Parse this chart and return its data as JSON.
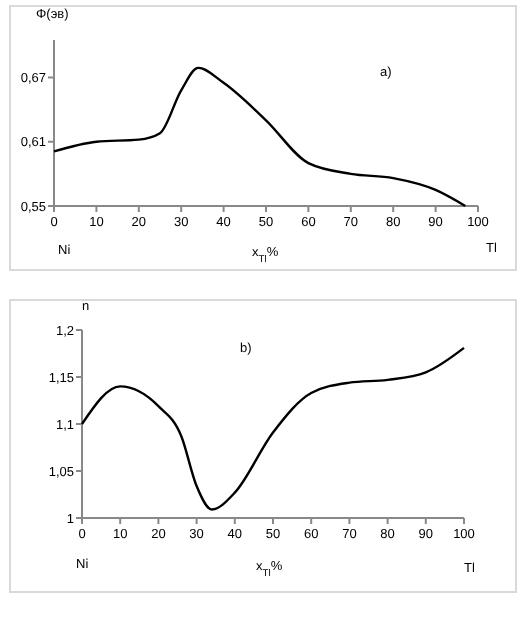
{
  "chart_data": [
    {
      "type": "line",
      "ylabel": "Φ(эв)",
      "xlabel": "x$_{Tl}$%",
      "annotations": [
        "a)",
        "Ni",
        "Tl"
      ],
      "xlim": [
        0,
        100
      ],
      "xticks": [
        0,
        10,
        20,
        30,
        40,
        50,
        60,
        70,
        80,
        90,
        100
      ],
      "ylim": [
        0.55,
        0.705
      ],
      "yticks": [
        {
          "value": 0.55,
          "label": "0,55"
        },
        {
          "value": 0.61,
          "label": "0,61"
        },
        {
          "value": 0.67,
          "label": "0,67"
        }
      ],
      "grid": false,
      "marker": "none",
      "line_style": "solid",
      "series": [
        {
          "color": "#000000",
          "x": [
            0,
            10,
            20,
            25,
            30,
            34,
            40,
            50,
            60,
            70,
            80,
            90,
            97
          ],
          "values": [
            0.601,
            0.61,
            0.612,
            0.618,
            0.658,
            0.679,
            0.665,
            0.63,
            0.59,
            0.58,
            0.576,
            0.565,
            0.55
          ]
        }
      ]
    },
    {
      "type": "line",
      "ylabel": "n",
      "xlabel": "x$_{Tl}$%",
      "annotations": [
        "b)",
        "Ni",
        "Tl"
      ],
      "xlim": [
        0,
        100
      ],
      "xticks": [
        0,
        10,
        20,
        30,
        40,
        50,
        60,
        70,
        80,
        90,
        100
      ],
      "ylim": [
        1,
        1.2
      ],
      "yticks": [
        {
          "value": 1,
          "label": "1"
        },
        {
          "value": 1.05,
          "label": "1,05"
        },
        {
          "value": 1.1,
          "label": "1,1"
        },
        {
          "value": 1.15,
          "label": "1,15"
        },
        {
          "value": 1.2,
          "label": "1,2"
        }
      ],
      "grid": false,
      "marker": "none",
      "line_style": "solid",
      "series": [
        {
          "color": "#000000",
          "x": [
            0,
            10,
            20,
            26,
            30,
            34,
            40,
            50,
            60,
            70,
            80,
            90,
            100
          ],
          "values": [
            1.1,
            1.14,
            1.119,
            1.087,
            1.034,
            1.009,
            1.027,
            1.091,
            1.133,
            1.144,
            1.147,
            1.155,
            1.181
          ]
        }
      ]
    }
  ]
}
